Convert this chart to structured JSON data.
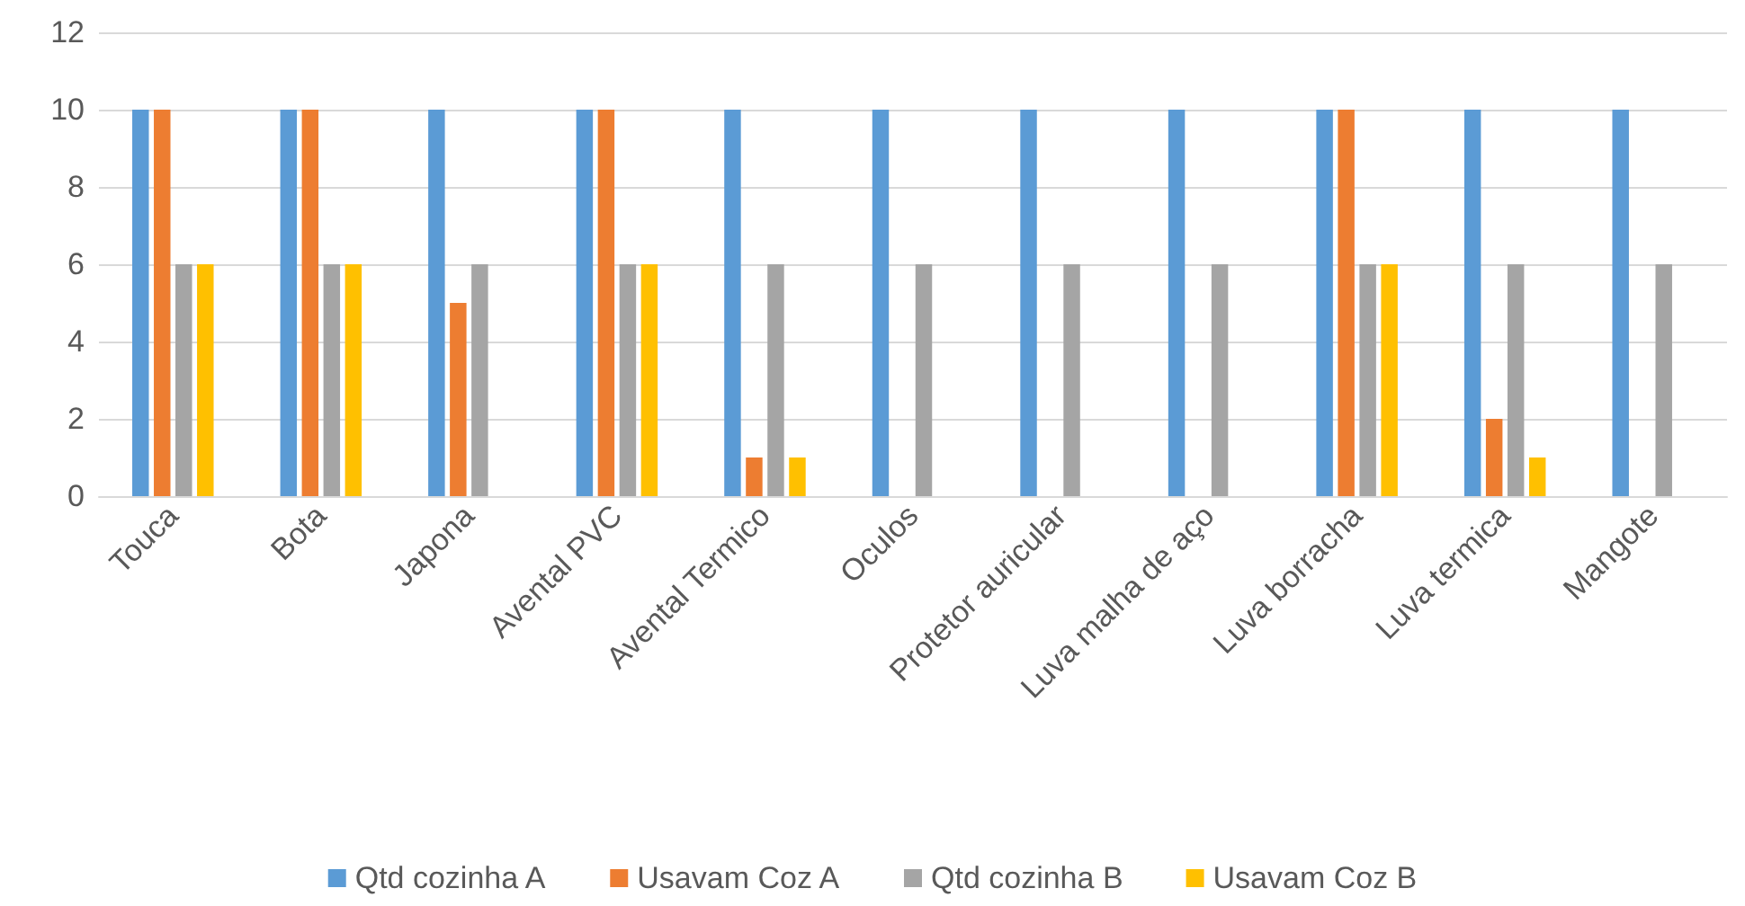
{
  "chart_data": {
    "type": "bar",
    "categories": [
      "Touca",
      "Bota",
      "Japona",
      "Avental PVC",
      "Avental Termico",
      "Oculos",
      "Protetor auricular",
      "Luva malha de aço",
      "Luva borracha",
      "Luva termica",
      "Mangote"
    ],
    "series": [
      {
        "name": "Qtd cozinha A",
        "color": "#5b9bd5",
        "values": [
          10,
          10,
          10,
          10,
          10,
          10,
          10,
          10,
          10,
          10,
          10
        ]
      },
      {
        "name": "Usavam Coz A",
        "color": "#ed7d31",
        "values": [
          10,
          10,
          5,
          10,
          1,
          0,
          0,
          0,
          10,
          2,
          0
        ]
      },
      {
        "name": "Qtd cozinha B",
        "color": "#a5a5a5",
        "values": [
          6,
          6,
          6,
          6,
          6,
          6,
          6,
          6,
          6,
          6,
          6
        ]
      },
      {
        "name": "Usavam Coz B",
        "color": "#ffc000",
        "values": [
          6,
          6,
          0,
          6,
          1,
          0,
          0,
          0,
          6,
          1,
          0
        ]
      }
    ],
    "ylim": [
      0,
      12
    ],
    "yticks": [
      0,
      2,
      4,
      6,
      8,
      10,
      12
    ],
    "grid": "y",
    "legend": "bottom"
  }
}
